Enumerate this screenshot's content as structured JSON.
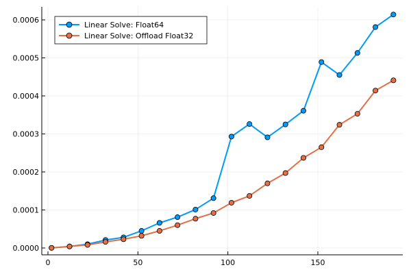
{
  "chart_data": {
    "type": "line",
    "xlim": [
      0,
      195
    ],
    "ylim": [
      0,
      0.0006
    ],
    "xticks": [
      0,
      50,
      100,
      150
    ],
    "yticks": [
      0,
      0.0001,
      0.0002,
      0.0003,
      0.0004,
      0.0005,
      0.0006
    ],
    "xtick_labels": [
      "0",
      "50",
      "100",
      "150"
    ],
    "ytick_labels": [
      "0.0000",
      "0.0001",
      "0.0002",
      "0.0003",
      "0.0004",
      "0.0005",
      "0.0006"
    ],
    "grid": true,
    "legend_position": "top-left",
    "x": [
      2,
      12,
      22,
      32,
      42,
      52,
      62,
      72,
      82,
      92,
      102,
      112,
      122,
      132,
      142,
      152,
      162,
      172,
      182,
      192
    ],
    "series": [
      {
        "name": "Linear Solve: Float64",
        "color": "#009AFA",
        "marker": "circle",
        "values": [
          3e-07,
          4e-06,
          1e-05,
          2.1e-05,
          2.8e-05,
          4.5e-05,
          6.6e-05,
          8.1e-05,
          0.000101,
          0.000131,
          0.000293,
          0.000326,
          0.000291,
          0.000325,
          0.000361,
          0.000489,
          0.000455,
          0.000513,
          0.000581,
          0.000614
        ]
      },
      {
        "name": "Linear Solve: Offload Float32",
        "color": "#E26F46",
        "marker": "circle",
        "values": [
          3e-07,
          4e-06,
          8e-06,
          1.6e-05,
          2.3e-05,
          3.2e-05,
          4.5e-05,
          6e-05,
          7.7e-05,
          9.2e-05,
          0.000119,
          0.000137,
          0.00017,
          0.000197,
          0.000237,
          0.000265,
          0.000324,
          0.000353,
          0.000414,
          0.000441
        ]
      }
    ]
  }
}
